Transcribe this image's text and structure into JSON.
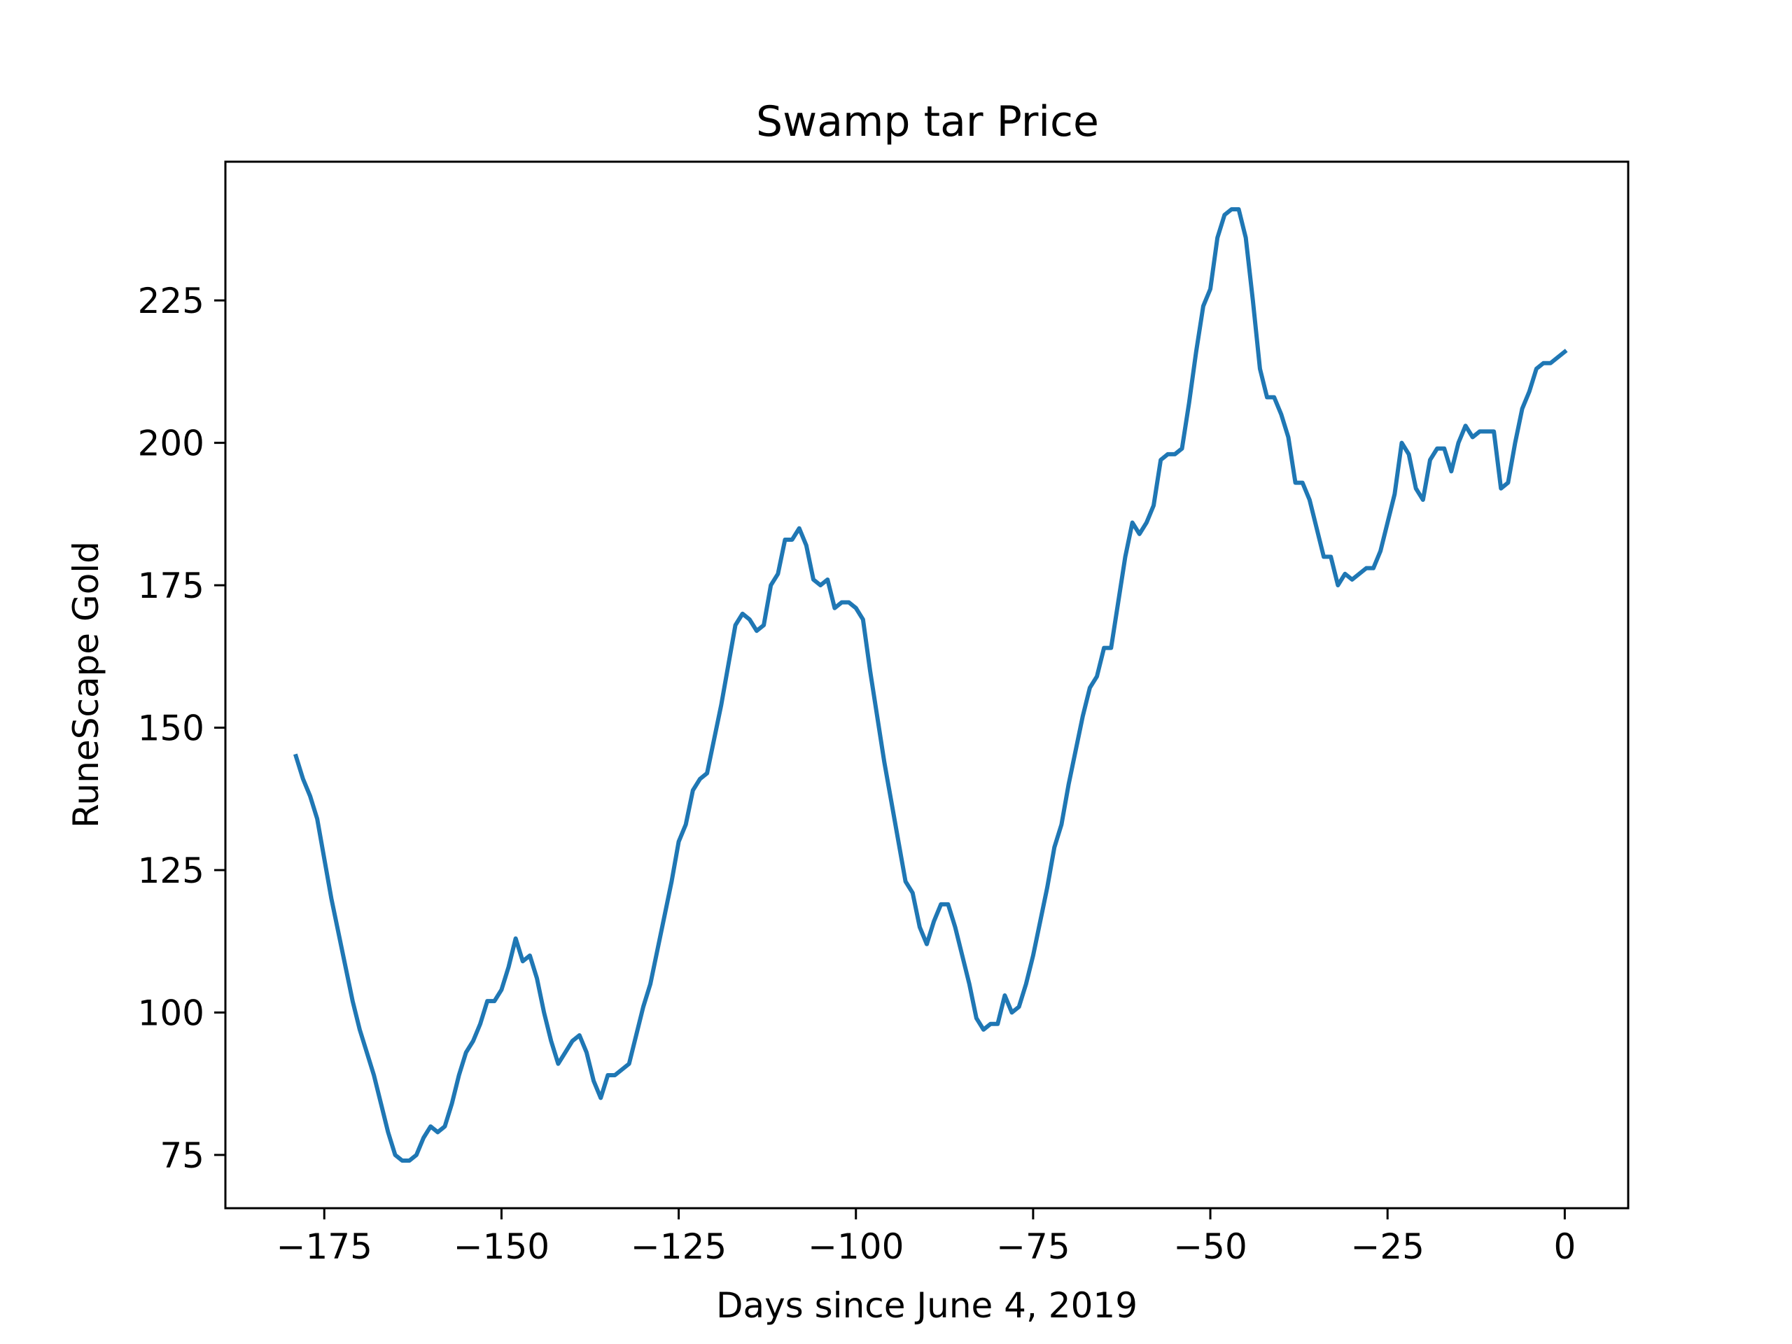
{
  "chart_data": {
    "type": "line",
    "title": "Swamp tar Price",
    "xlabel": "Days since June 4, 2019",
    "ylabel": "RuneScape Gold",
    "xlim": [
      -188.95,
      8.95
    ],
    "ylim": [
      65.65,
      249.35
    ],
    "xticks": [
      -175,
      -150,
      -125,
      -100,
      -75,
      -50,
      -25,
      0
    ],
    "xtick_labels": [
      "−175",
      "−150",
      "−125",
      "−100",
      "−75",
      "−50",
      "−25",
      "0"
    ],
    "yticks": [
      75,
      100,
      125,
      150,
      175,
      200,
      225
    ],
    "ytick_labels": [
      "75",
      "100",
      "125",
      "150",
      "175",
      "200",
      "225"
    ],
    "grid": false,
    "line_color": "#1f77b4",
    "series": [
      {
        "x": [
          -179,
          -178,
          -177,
          -176,
          -175,
          -174,
          -173,
          -172,
          -171,
          -170,
          -169,
          -168,
          -167,
          -166,
          -165,
          -164,
          -163,
          -162,
          -161,
          -160,
          -159,
          -158,
          -157,
          -156,
          -155,
          -154,
          -153,
          -152,
          -151,
          -150,
          -149,
          -148,
          -147,
          -146,
          -145,
          -144,
          -143,
          -142,
          -141,
          -140,
          -139,
          -138,
          -137,
          -136,
          -135,
          -134,
          -133,
          -132,
          -131,
          -130,
          -129,
          -128,
          -127,
          -126,
          -125,
          -124,
          -123,
          -122,
          -121,
          -120,
          -119,
          -118,
          -117,
          -116,
          -115,
          -114,
          -113,
          -112,
          -111,
          -110,
          -109,
          -108,
          -107,
          -106,
          -105,
          -104,
          -103,
          -102,
          -101,
          -100,
          -99,
          -98,
          -97,
          -96,
          -95,
          -94,
          -93,
          -92,
          -91,
          -90,
          -89,
          -88,
          -87,
          -86,
          -85,
          -84,
          -83,
          -82,
          -81,
          -80,
          -79,
          -78,
          -77,
          -76,
          -75,
          -74,
          -73,
          -72,
          -71,
          -70,
          -69,
          -68,
          -67,
          -66,
          -65,
          -64,
          -63,
          -62,
          -61,
          -60,
          -59,
          -58,
          -57,
          -56,
          -55,
          -54,
          -53,
          -52,
          -51,
          -50,
          -49,
          -48,
          -47,
          -46,
          -45,
          -44,
          -43,
          -42,
          -41,
          -40,
          -39,
          -38,
          -37,
          -36,
          -35,
          -34,
          -33,
          -32,
          -31,
          -30,
          -29,
          -28,
          -27,
          -26,
          -25,
          -24,
          -23,
          -22,
          -21,
          -20,
          -19,
          -18,
          -17,
          -16,
          -15,
          -14,
          -13,
          -12,
          -11,
          -10,
          -9,
          -8,
          -7,
          -6,
          -5,
          -4,
          -3,
          -2,
          -1,
          0
        ],
        "values": [
          145,
          141,
          138,
          134,
          127,
          120,
          114,
          108,
          102,
          97,
          93,
          89,
          84,
          79,
          75,
          74,
          74,
          75,
          78,
          80,
          79,
          80,
          84,
          89,
          93,
          95,
          98,
          102,
          102,
          104,
          108,
          113,
          109,
          110,
          106,
          100,
          95,
          91,
          93,
          95,
          96,
          93,
          88,
          85,
          89,
          89,
          90,
          91,
          96,
          101,
          105,
          111,
          117,
          123,
          130,
          133,
          139,
          141,
          142,
          148,
          154,
          161,
          168,
          170,
          169,
          167,
          168,
          175,
          177,
          183,
          183,
          185,
          182,
          176,
          175,
          176,
          171,
          172,
          172,
          171,
          169,
          160,
          152,
          144,
          137,
          130,
          123,
          121,
          115,
          112,
          116,
          119,
          119,
          115,
          110,
          105,
          99,
          97,
          98,
          98,
          103,
          100,
          101,
          105,
          110,
          116,
          122,
          129,
          133,
          140,
          146,
          152,
          157,
          159,
          164,
          164,
          172,
          180,
          186,
          184,
          186,
          189,
          197,
          198,
          198,
          199,
          207,
          216,
          224,
          227,
          236,
          240,
          241,
          241,
          236,
          225,
          213,
          208,
          208,
          205,
          201,
          193,
          193,
          190,
          185,
          180,
          180,
          175,
          177,
          176,
          177,
          178,
          178,
          181,
          186,
          191,
          200,
          198,
          192,
          190,
          197,
          199,
          199,
          195,
          200,
          203,
          201,
          202,
          202,
          202,
          192,
          193,
          200,
          206,
          209,
          213,
          214,
          214,
          215,
          216
        ]
      }
    ]
  }
}
